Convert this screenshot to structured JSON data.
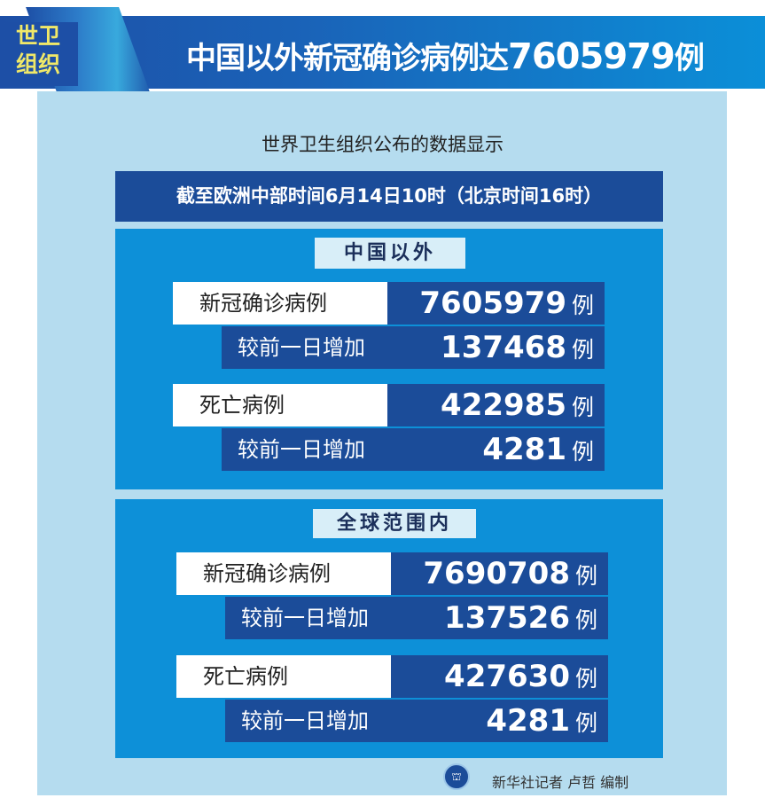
{
  "header": {
    "badge_line1": "世卫",
    "badge_line2": "组织",
    "title_prefix": "中国以外新冠确诊病例达",
    "title_number": "7605979",
    "title_unit": "例"
  },
  "subtitle": "世界卫生组织公布的数据显示",
  "date_bar": "截至欧洲中部时间6月14日10时（北京时间16时）",
  "sections": [
    {
      "label": "中国以外",
      "rows": [
        {
          "label": "新冠确诊病例",
          "value": "7605979",
          "unit": "例",
          "sub_label": "较前一日增加",
          "sub_value": "137468",
          "sub_unit": "例"
        },
        {
          "label": "死亡病例",
          "value": "422985",
          "unit": "例",
          "sub_label": "较前一日增加",
          "sub_value": "4281",
          "sub_unit": "例"
        }
      ]
    },
    {
      "label": "全球范围内",
      "rows": [
        {
          "label": "新冠确诊病例",
          "value": "7690708",
          "unit": "例",
          "sub_label": "较前一日增加",
          "sub_value": "137526",
          "sub_unit": "例"
        },
        {
          "label": "死亡病例",
          "value": "427630",
          "unit": "例",
          "sub_label": "较前一日增加",
          "sub_value": "4281",
          "sub_unit": "例"
        }
      ]
    }
  ],
  "footer": {
    "credit": "新华社记者 卢哲 编制",
    "logo_icon": "xinhua-logo"
  },
  "colors": {
    "navy": "#1b4c99",
    "section_blue": "#0d90d8",
    "panel": "#b5dcef",
    "badge_text": "#f0e868"
  }
}
